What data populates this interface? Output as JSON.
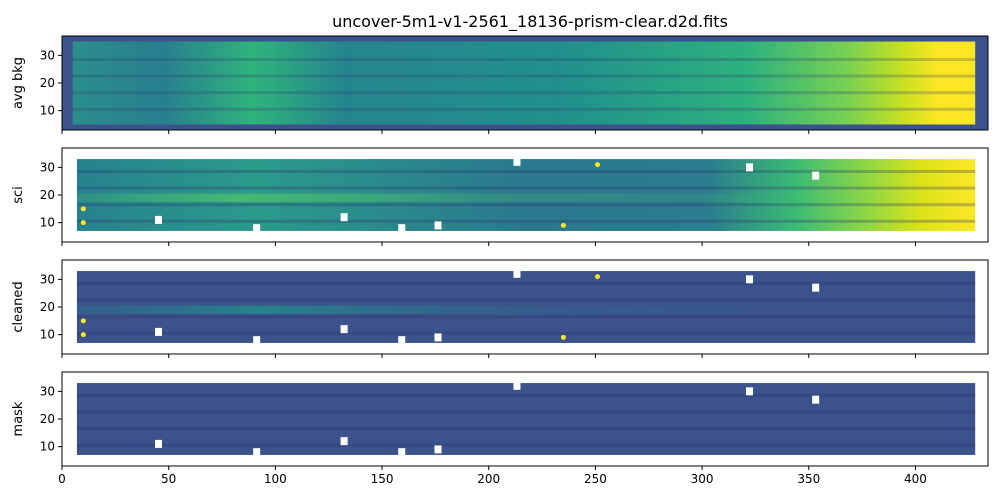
{
  "title": "uncover-5m1-v1-2561_18136-prism-clear.d2d.fits",
  "chart_data": {
    "type": "heatmap",
    "colormap": "viridis",
    "x_ticks": [
      "0",
      "50",
      "100",
      "150",
      "200",
      "250",
      "300",
      "350",
      "400"
    ],
    "xlim": [
      0,
      434
    ],
    "shared_x": true,
    "panels": [
      {
        "ylabel": "avg bkg",
        "y_ticks": [
          "10",
          "20",
          "30"
        ],
        "ylim": [
          3,
          37
        ],
        "data_extent": {
          "x": [
            5,
            428
          ],
          "y": [
            5,
            35
          ]
        },
        "description": "average background, bright (yellow) at long wavelengths x>380"
      },
      {
        "ylabel": "sci",
        "y_ticks": [
          "10",
          "20",
          "30"
        ],
        "ylim": [
          3,
          37
        ],
        "data_extent": {
          "x": [
            7,
            428
          ],
          "y": [
            7,
            33
          ]
        },
        "description": "science frame, trace at y~19 near x~90, bright red end"
      },
      {
        "ylabel": "cleaned",
        "y_ticks": [
          "10",
          "20",
          "30"
        ],
        "ylim": [
          3,
          37
        ],
        "data_extent": {
          "x": [
            7,
            428
          ],
          "y": [
            7,
            33
          ]
        },
        "description": "background-subtracted frame, faint trace at y~19"
      },
      {
        "ylabel": "mask",
        "y_ticks": [
          "10",
          "20",
          "30"
        ],
        "ylim": [
          3,
          37
        ],
        "data_extent": {
          "x": [
            7,
            428
          ],
          "y": [
            7,
            33
          ]
        },
        "description": "masked frame"
      }
    ],
    "masked_pixels": [
      {
        "x": 213,
        "y": 32
      },
      {
        "x": 45,
        "y": 11
      },
      {
        "x": 132,
        "y": 12
      },
      {
        "x": 91,
        "y": 8
      },
      {
        "x": 159,
        "y": 8
      },
      {
        "x": 176,
        "y": 9
      },
      {
        "x": 322,
        "y": 30
      },
      {
        "x": 353,
        "y": 27
      }
    ],
    "hot_pixels": [
      {
        "x": 251,
        "y": 31
      },
      {
        "x": 235,
        "y": 9
      },
      {
        "x": 10,
        "y": 10
      },
      {
        "x": 10,
        "y": 15
      }
    ]
  }
}
